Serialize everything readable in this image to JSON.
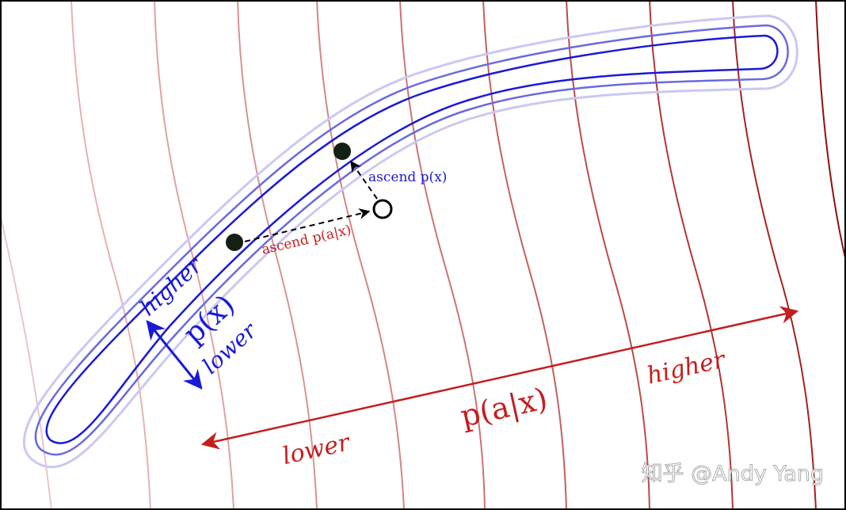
{
  "colors": {
    "density_blue": "#1a1ad6",
    "conditional_red": "#c41e1e",
    "contour_red_dark": "#8e1010",
    "point_fill": "#142014",
    "watermark": "#ffffff"
  },
  "density_axis": {
    "label": "p(x)",
    "higher": "higher",
    "lower": "lower"
  },
  "conditional_axis": {
    "label": "p(a|x)",
    "higher": "higher",
    "lower": "lower"
  },
  "steps": {
    "ascend_conditional": "ascend p(a|x)",
    "ascend_density": "ascend p(x)"
  },
  "watermark": "知乎 @Andy Yang"
}
